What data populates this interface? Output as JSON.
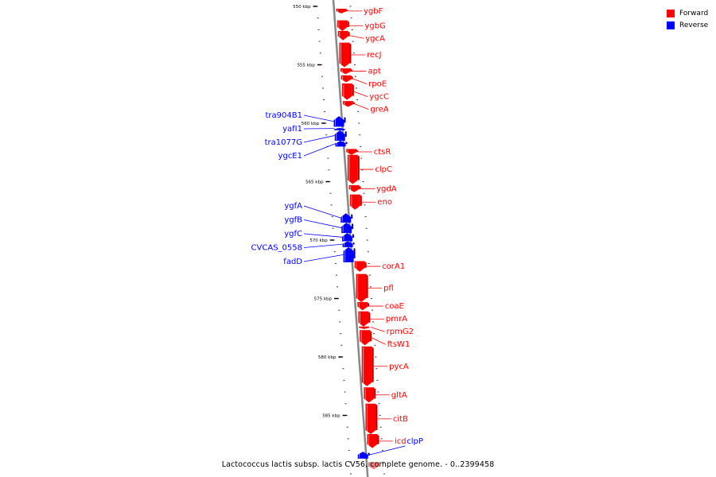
{
  "colors": {
    "forward": "#ff0000",
    "reverse": "#0000ff",
    "backbone": "#888888",
    "highlight": "#f08080"
  },
  "legend": {
    "forward_label": "Forward",
    "reverse_label": "Reverse"
  },
  "caption": "Lactococcus lactis subsp. lactis CV56, complete genome. - 0..2399458",
  "ticks": [
    {
      "label": "550 kbp",
      "kbp": 550
    },
    {
      "label": "555 kbp",
      "kbp": 555
    },
    {
      "label": "560 kbp",
      "kbp": 560
    },
    {
      "label": "565 kbp",
      "kbp": 565
    },
    {
      "label": "570 kbp",
      "kbp": 570
    },
    {
      "label": "575 kbp",
      "kbp": 575
    },
    {
      "label": "580 kbp",
      "kbp": 580
    },
    {
      "label": "585 kbp",
      "kbp": 585
    }
  ],
  "genes": [
    {
      "name": "ygbF",
      "strand": "forward",
      "start": 550.2,
      "end": 550.6
    },
    {
      "name": "ygbG",
      "strand": "forward",
      "start": 551.2,
      "end": 552.1
    },
    {
      "name": "ygcA",
      "strand": "forward",
      "start": 552.1,
      "end": 552.9
    },
    {
      "name": "recJ",
      "strand": "forward",
      "start": 553.1,
      "end": 555.2
    },
    {
      "name": "apt",
      "strand": "forward",
      "start": 555.3,
      "end": 555.8
    },
    {
      "name": "rpoE",
      "strand": "forward",
      "start": 555.9,
      "end": 556.5
    },
    {
      "name": "ygcC",
      "strand": "forward",
      "start": 556.6,
      "end": 558.0
    },
    {
      "name": "greA",
      "strand": "forward",
      "start": 558.1,
      "end": 558.6
    },
    {
      "name": "tra904B1",
      "strand": "reverse",
      "start": 559.4,
      "end": 560.3
    },
    {
      "name": "yafI1",
      "strand": "reverse",
      "start": 560.4,
      "end": 560.5
    },
    {
      "name": "tra1077G",
      "strand": "reverse",
      "start": 560.6,
      "end": 561.5
    },
    {
      "name": "ygcE1",
      "strand": "reverse",
      "start": 561.5,
      "end": 562.0
    },
    {
      "name": "ctsR",
      "strand": "forward",
      "start": 562.2,
      "end": 562.7
    },
    {
      "name": "clpC",
      "strand": "forward",
      "start": 562.7,
      "end": 565.2
    },
    {
      "name": "ygdA",
      "strand": "forward",
      "start": 565.3,
      "end": 565.9
    },
    {
      "name": "eno",
      "strand": "forward",
      "start": 566.1,
      "end": 567.4
    },
    {
      "name": "ygfA",
      "strand": "reverse",
      "start": 567.7,
      "end": 568.5
    },
    {
      "name": "ygfB",
      "strand": "reverse",
      "start": 568.5,
      "end": 569.4
    },
    {
      "name": "ygfC",
      "strand": "reverse",
      "start": 569.4,
      "end": 570.1
    },
    {
      "name": "CVCAS_0558",
      "strand": "reverse",
      "start": 570.1,
      "end": 570.6
    },
    {
      "name": "fadD",
      "strand": "reverse",
      "start": 570.6,
      "end": 571.9
    },
    {
      "name": "corA1",
      "strand": "forward",
      "start": 571.8,
      "end": 572.7
    },
    {
      "name": "pfl",
      "strand": "forward",
      "start": 572.9,
      "end": 575.3
    },
    {
      "name": "coaE",
      "strand": "forward",
      "start": 575.3,
      "end": 576.0
    },
    {
      "name": "pmrA",
      "strand": "forward",
      "start": 576.1,
      "end": 577.4
    },
    {
      "name": "rpmG2",
      "strand": "forward",
      "start": 577.4,
      "end": 577.5
    },
    {
      "name": "ftsW1",
      "strand": "forward",
      "start": 577.7,
      "end": 579.0
    },
    {
      "name": "pycA",
      "strand": "forward",
      "start": 579.1,
      "end": 582.5
    },
    {
      "name": "gltA",
      "strand": "forward",
      "start": 582.6,
      "end": 583.9
    },
    {
      "name": "citB",
      "strand": "forward",
      "start": 584.0,
      "end": 586.6
    },
    {
      "name": "icd",
      "strand": "forward",
      "start": 586.6,
      "end": 587.8
    },
    {
      "name": "clpP",
      "strand": "reverse",
      "start": 588.1,
      "end": 588.7
    }
  ]
}
